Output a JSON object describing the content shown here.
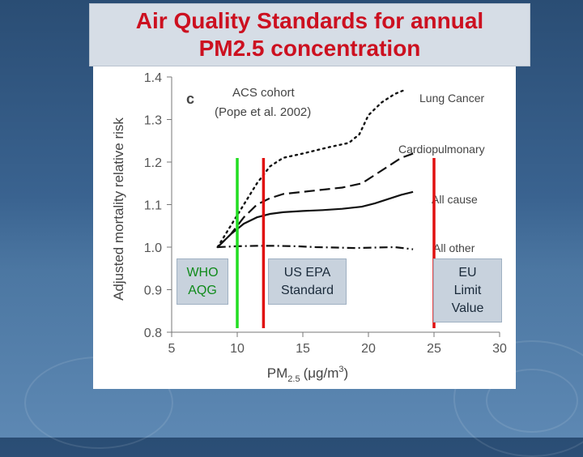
{
  "slide": {
    "title": "Air Quality Standards for annual\nPM2.5 concentration"
  },
  "chart_data": {
    "type": "line",
    "panel_letter": "c",
    "annotation": "ACS cohort",
    "annotation_sub": "(Pope et al. 2002)",
    "ylabel": "Adjusted mortality relative risk",
    "xlabel_main": "PM",
    "xlabel_sub": "2.5",
    "xlabel_unit": "(μg/m",
    "xlabel_sup": "3",
    "xlabel_close": ")",
    "xlim": [
      5,
      30
    ],
    "ylim": [
      0.8,
      1.4
    ],
    "x_ticks": [
      5,
      10,
      15,
      20,
      25,
      30
    ],
    "y_ticks": [
      0.8,
      0.9,
      1.0,
      1.1,
      1.2,
      1.3,
      1.4
    ],
    "grid": false,
    "series": [
      {
        "name": "Lung Cancer",
        "style": "dotted",
        "x": [
          8.5,
          9.5,
          10.5,
          11.5,
          12.5,
          13.5,
          15,
          17,
          18.5,
          19.3,
          20,
          21,
          22,
          22.8
        ],
        "y": [
          1.0,
          1.05,
          1.1,
          1.15,
          1.19,
          1.21,
          1.22,
          1.235,
          1.245,
          1.265,
          1.31,
          1.34,
          1.36,
          1.37
        ]
      },
      {
        "name": "Cardiopulmonary",
        "style": "dashed",
        "x": [
          8.5,
          9.5,
          10.5,
          11.5,
          12.5,
          13.5,
          15,
          16.5,
          18,
          19.5,
          20.5,
          21.5,
          22.5,
          23.4
        ],
        "y": [
          1.0,
          1.03,
          1.07,
          1.1,
          1.115,
          1.125,
          1.13,
          1.135,
          1.14,
          1.15,
          1.17,
          1.19,
          1.21,
          1.22
        ]
      },
      {
        "name": "All cause",
        "style": "solid",
        "x": [
          8.5,
          9.5,
          10.5,
          11.5,
          12.5,
          13.5,
          15,
          16.5,
          18,
          19.5,
          20.5,
          21.5,
          22.5,
          23.4
        ],
        "y": [
          1.0,
          1.03,
          1.055,
          1.07,
          1.078,
          1.082,
          1.085,
          1.087,
          1.09,
          1.095,
          1.103,
          1.113,
          1.123,
          1.13
        ]
      },
      {
        "name": "All other",
        "style": "dashdot",
        "x": [
          8.5,
          10,
          11.5,
          13,
          14.5,
          16,
          17.5,
          19,
          20.5,
          22,
          23.4
        ],
        "y": [
          1.0,
          1.002,
          1.003,
          1.003,
          1.002,
          1.0,
          0.999,
          0.998,
          0.999,
          1.0,
          0.995
        ]
      }
    ],
    "standards": [
      {
        "name": "WHO AQG",
        "x": 10,
        "color": "#22dd22",
        "label": "WHO\nAQG"
      },
      {
        "name": "US EPA Standard",
        "x": 12,
        "color": "#e01010",
        "label": "US EPA\nStandard"
      },
      {
        "name": "EU Limit Value",
        "x": 25,
        "color": "#e01010",
        "label": "EU\nLimit\nValue"
      }
    ]
  }
}
